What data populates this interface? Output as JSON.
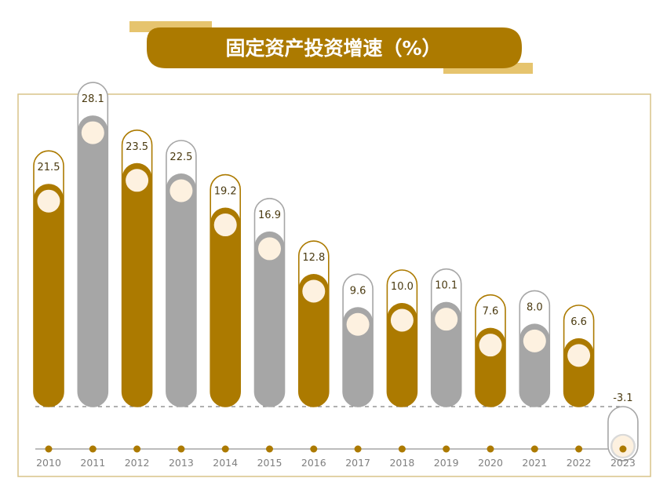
{
  "colors": {
    "gold": "#ac7a00",
    "grey": "#a6a6a6",
    "circle": "#fdf1e0",
    "frame": "#d8c489",
    "title_light": "#e6c46e",
    "axis": "#bcbcbc",
    "tick_text": "#7f7f7f",
    "dashed": "#808080",
    "negative_capsule": "#d9d9d9"
  },
  "chart_data": {
    "type": "bar",
    "title": "固定资产投资增速（%）",
    "categories": [
      "2010",
      "2011",
      "2012",
      "2013",
      "2014",
      "2015",
      "2016",
      "2017",
      "2018",
      "2019",
      "2020",
      "2021",
      "2022",
      "2023"
    ],
    "values": [
      21.5,
      28.1,
      23.5,
      22.5,
      19.2,
      16.9,
      12.8,
      9.6,
      10.0,
      10.1,
      7.6,
      8.0,
      6.6,
      -3.1
    ],
    "value_labels": [
      "21.5",
      "28.1",
      "23.5",
      "22.5",
      "19.2",
      "16.9",
      "12.8",
      "9.6",
      "10.0",
      "10.1",
      "7.6",
      "8.0",
      "6.6",
      "-3.1"
    ],
    "series_colors": [
      "gold",
      "grey",
      "gold",
      "grey",
      "gold",
      "grey",
      "gold",
      "grey",
      "gold",
      "grey",
      "gold",
      "grey",
      "gold",
      "grey"
    ],
    "xlabel": "",
    "ylabel": "",
    "ylim": [
      -3.1,
      28.1
    ],
    "grid": false,
    "legend": "none"
  }
}
